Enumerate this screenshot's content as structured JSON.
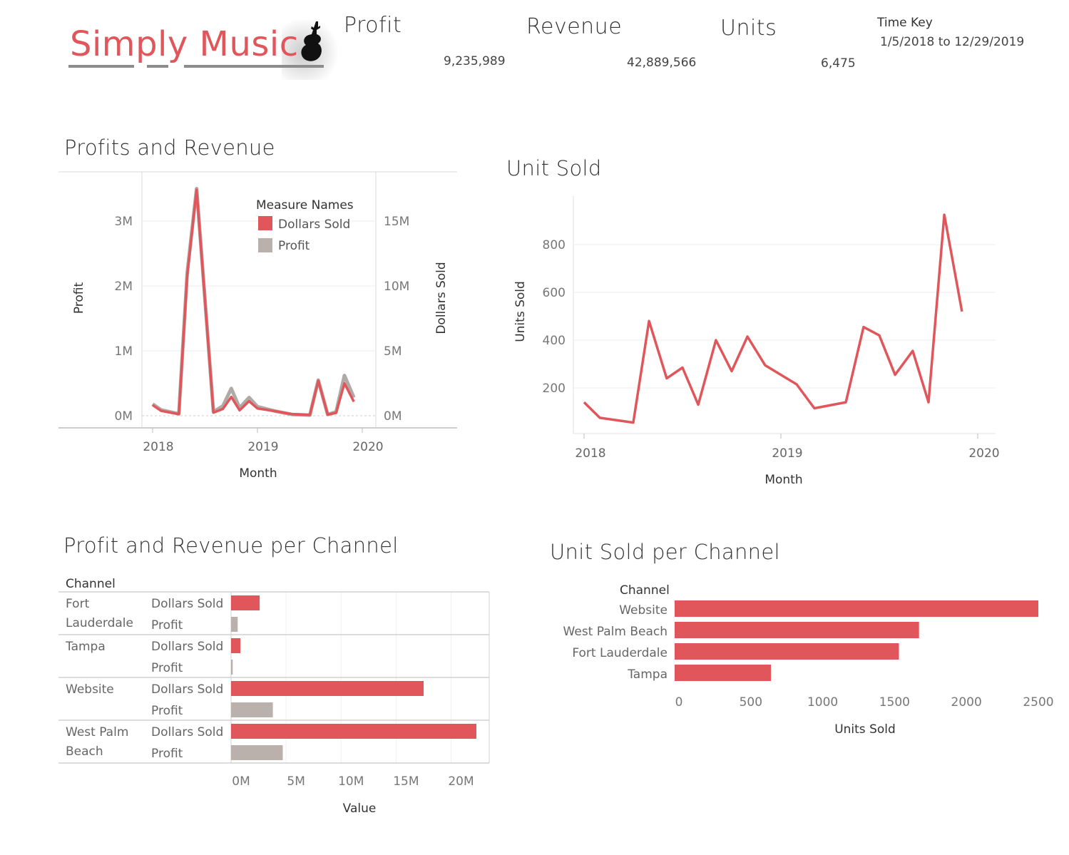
{
  "logo": {
    "text": "Simply Music",
    "icon": "violin-icon"
  },
  "kpis": {
    "profit": {
      "label": "Profit",
      "value": "9,235,989"
    },
    "revenue": {
      "label": "Revenue",
      "value": "42,889,566"
    },
    "units": {
      "label": "Units",
      "value": "6,475"
    }
  },
  "time_key": {
    "label": "Time Key",
    "value": "1/5/2018 to 12/29/2019"
  },
  "colors": {
    "accent": "#e0565b",
    "profit_gray": "#bab0ac",
    "gridline": "#ececec"
  },
  "chart_data": [
    {
      "id": "profits_revenue",
      "type": "line",
      "title": "Profits and Revenue",
      "xlabel": "Month",
      "ylabel": "Profit",
      "y2label": "Dollars Sold",
      "x_ticks": [
        "2018",
        "2019",
        "2020"
      ],
      "y_ticks": [
        "0M",
        "1M",
        "2M",
        "3M"
      ],
      "y2_ticks": [
        "0M",
        "5M",
        "10M",
        "15M"
      ],
      "ylim": [
        0,
        3000000
      ],
      "y2lim": [
        0,
        15000000
      ],
      "legend": {
        "title": "Measure Names",
        "items": [
          "Dollars Sold",
          "Profit"
        ],
        "position": "top-right"
      },
      "x": [
        2018.0,
        2018.08,
        2018.25,
        2018.33,
        2018.42,
        2018.58,
        2018.67,
        2018.75,
        2018.83,
        2018.92,
        2019.0,
        2019.17,
        2019.33,
        2019.5,
        2019.58,
        2019.67,
        2019.75,
        2019.83,
        2019.92
      ],
      "series": [
        {
          "name": "Profit",
          "axis": "left",
          "values": [
            180000,
            90000,
            30000,
            2200000,
            3500000,
            60000,
            150000,
            420000,
            120000,
            280000,
            140000,
            70000,
            20000,
            10000,
            550000,
            20000,
            60000,
            620000,
            280000
          ]
        },
        {
          "name": "Dollars Sold",
          "axis": "right",
          "values": [
            820000,
            380000,
            120000,
            10800000,
            17400000,
            240000,
            520000,
            1450000,
            420000,
            1120000,
            560000,
            350000,
            120000,
            60000,
            2700000,
            80000,
            220000,
            2500000,
            1080000
          ]
        }
      ]
    },
    {
      "id": "unit_sold",
      "type": "line",
      "title": "Unit Sold",
      "xlabel": "Month",
      "ylabel": "Units Sold",
      "x_ticks": [
        "2018",
        "2019",
        "2020"
      ],
      "y_ticks": [
        "200",
        "400",
        "600",
        "800"
      ],
      "ylim": [
        0,
        970
      ],
      "x": [
        2018.0,
        2018.08,
        2018.25,
        2018.33,
        2018.42,
        2018.5,
        2018.58,
        2018.67,
        2018.75,
        2018.83,
        2018.92,
        2019.08,
        2019.17,
        2019.33,
        2019.42,
        2019.5,
        2019.58,
        2019.67,
        2019.75,
        2019.83,
        2019.92
      ],
      "series": [
        {
          "name": "Units Sold",
          "values": [
            140,
            75,
            55,
            480,
            240,
            285,
            130,
            400,
            270,
            415,
            295,
            215,
            115,
            140,
            455,
            420,
            255,
            355,
            140,
            925,
            520
          ]
        }
      ]
    },
    {
      "id": "channel_value",
      "type": "bar",
      "title": "Profit and Revenue per Channel",
      "row_header": "Channel",
      "xlabel": "Value",
      "x_ticks": [
        "0M",
        "5M",
        "10M",
        "15M",
        "20M"
      ],
      "xlim": [
        0,
        23300000
      ],
      "groups": [
        {
          "channel": "Fort Lauderdale",
          "rows": [
            {
              "measure": "Dollars Sold",
              "value": 2600000
            },
            {
              "measure": "Profit",
              "value": 600000
            }
          ]
        },
        {
          "channel": "Tampa",
          "rows": [
            {
              "measure": "Dollars Sold",
              "value": 850000
            },
            {
              "measure": "Profit",
              "value": 150000
            }
          ]
        },
        {
          "channel": "Website",
          "rows": [
            {
              "measure": "Dollars Sold",
              "value": 17500000
            },
            {
              "measure": "Profit",
              "value": 3800000
            }
          ]
        },
        {
          "channel": "West Palm Beach",
          "rows": [
            {
              "measure": "Dollars Sold",
              "value": 22300000
            },
            {
              "measure": "Profit",
              "value": 4700000
            }
          ]
        }
      ]
    },
    {
      "id": "channel_units",
      "type": "bar",
      "title": "Unit Sold per Channel",
      "row_header": "Channel",
      "xlabel": "Units Sold",
      "x_ticks": [
        "0",
        "500",
        "1000",
        "1500",
        "2000",
        "2500"
      ],
      "xlim": [
        0,
        2650
      ],
      "categories": [
        "Website",
        "West Palm Beach",
        "Fort Lauderdale",
        "Tampa"
      ],
      "values": [
        2530,
        1700,
        1560,
        670
      ]
    }
  ]
}
